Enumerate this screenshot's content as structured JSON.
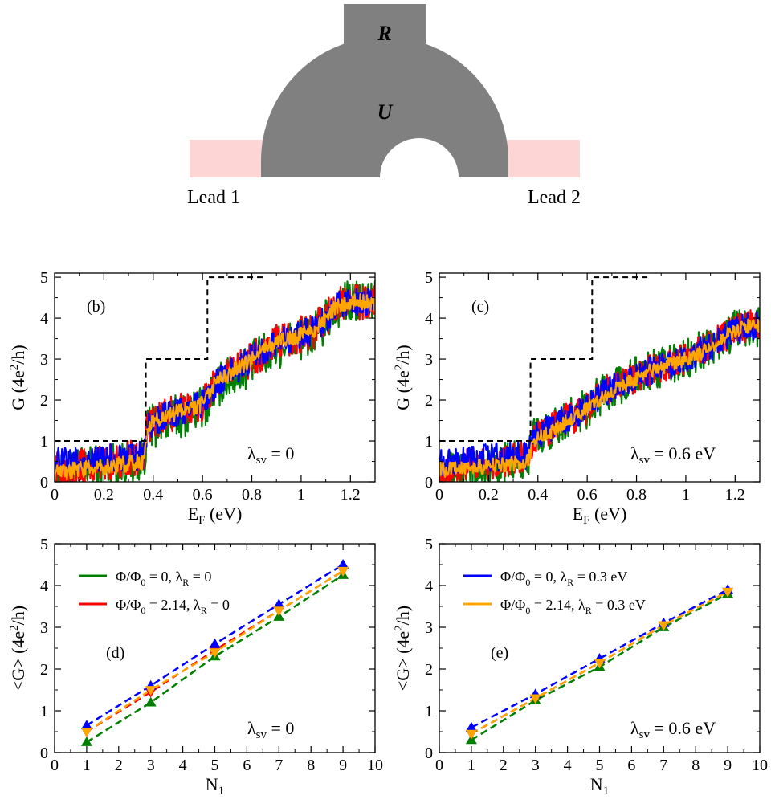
{
  "device": {
    "labels": {
      "top": "R",
      "middle": "U",
      "lead_left": "Lead 1",
      "lead_right": "Lead 2"
    },
    "colors": {
      "body": "#808080",
      "lead": "#fdd5d5",
      "hole": "#ffffff"
    }
  },
  "colors": {
    "green": "#008000",
    "red": "#ff0000",
    "blue": "#0000ff",
    "orange": "#ffa500",
    "black": "#000000"
  },
  "chart_data": [
    {
      "type": "line",
      "panel": "(b)",
      "xlabel": "E",
      "xlabel_sub": "F",
      "xlabel_unit": " (eV)",
      "ylabel": "G (4e",
      "ylabel_sup": "2",
      "ylabel_unit": "/h)",
      "xlim": [
        0,
        1.3
      ],
      "ylim": [
        0,
        5.1
      ],
      "xticks": [
        0,
        0.2,
        0.4,
        0.6,
        0.8,
        1,
        1.2
      ],
      "xticklabels": [
        "0",
        "0.2",
        "0.4",
        "0.6",
        "0.8",
        "1",
        "1.2"
      ],
      "yticks": [
        0,
        1,
        2,
        3,
        4,
        5
      ],
      "yticklabels": [
        "0",
        "1",
        "2",
        "3",
        "4",
        "5"
      ],
      "annotation": {
        "symbol": "λ",
        "sub": "sv",
        "text": " = 0"
      },
      "step_reference": {
        "x": [
          0,
          0.37,
          0.37,
          0.62,
          0.62,
          0.85
        ],
        "y": [
          1,
          1,
          3,
          3,
          5,
          5
        ]
      },
      "series": [
        {
          "color": "green",
          "x": [
            0,
            0.05,
            0.1,
            0.15,
            0.2,
            0.25,
            0.3,
            0.36,
            0.38,
            0.45,
            0.5,
            0.55,
            0.6,
            0.65,
            0.7,
            0.75,
            0.8,
            0.85,
            0.9,
            0.95,
            1.0,
            1.05,
            1.1,
            1.15,
            1.2,
            1.25,
            1.3
          ],
          "y": [
            0.1,
            0.2,
            0.3,
            0.35,
            0.4,
            0.45,
            0.5,
            0.55,
            1.3,
            1.5,
            1.6,
            1.7,
            1.8,
            2.3,
            2.5,
            2.7,
            2.9,
            3.1,
            3.3,
            3.4,
            3.5,
            3.6,
            3.9,
            4.3,
            4.4,
            4.4,
            4.4
          ],
          "noise": 0.55
        },
        {
          "color": "red",
          "x": [
            0,
            0.05,
            0.1,
            0.15,
            0.2,
            0.25,
            0.3,
            0.36,
            0.38,
            0.45,
            0.5,
            0.55,
            0.6,
            0.65,
            0.7,
            0.75,
            0.8,
            0.85,
            0.9,
            0.95,
            1.0,
            1.05,
            1.1,
            1.15,
            1.2,
            1.25,
            1.3
          ],
          "y": [
            0.3,
            0.3,
            0.35,
            0.4,
            0.45,
            0.5,
            0.55,
            0.6,
            1.4,
            1.6,
            1.7,
            1.8,
            1.9,
            2.4,
            2.6,
            2.8,
            3.0,
            3.2,
            3.4,
            3.5,
            3.6,
            3.7,
            4.0,
            4.3,
            4.4,
            4.4,
            4.4
          ],
          "noise": 0.45
        },
        {
          "color": "blue",
          "x": [
            0,
            0.05,
            0.1,
            0.15,
            0.2,
            0.25,
            0.3,
            0.36,
            0.38,
            0.45,
            0.5,
            0.55,
            0.6,
            0.65,
            0.7,
            0.75,
            0.8,
            0.85,
            0.9,
            0.95,
            1.0,
            1.05,
            1.1,
            1.15,
            1.2,
            1.25,
            1.3
          ],
          "y": [
            0.5,
            0.5,
            0.5,
            0.55,
            0.55,
            0.6,
            0.6,
            0.65,
            1.4,
            1.6,
            1.7,
            1.8,
            1.9,
            2.4,
            2.6,
            2.8,
            3.0,
            3.2,
            3.4,
            3.5,
            3.6,
            3.7,
            4.0,
            4.3,
            4.4,
            4.4,
            4.4
          ],
          "noise": 0.35
        },
        {
          "color": "orange",
          "x": [
            0,
            0.05,
            0.1,
            0.15,
            0.2,
            0.25,
            0.3,
            0.36,
            0.38,
            0.45,
            0.5,
            0.55,
            0.6,
            0.65,
            0.7,
            0.75,
            0.8,
            0.85,
            0.9,
            0.95,
            1.0,
            1.05,
            1.1,
            1.15,
            1.2,
            1.25,
            1.3
          ],
          "y": [
            0.2,
            0.25,
            0.3,
            0.35,
            0.35,
            0.4,
            0.45,
            0.5,
            1.4,
            1.6,
            1.7,
            1.8,
            1.9,
            2.4,
            2.6,
            2.8,
            3.0,
            3.2,
            3.4,
            3.5,
            3.6,
            3.7,
            4.0,
            4.3,
            4.4,
            4.4,
            4.3
          ],
          "noise": 0.2
        }
      ]
    },
    {
      "type": "line",
      "panel": "(c)",
      "xlabel": "E",
      "xlabel_sub": "F",
      "xlabel_unit": " (eV)",
      "ylabel": "G (4e",
      "ylabel_sup": "2",
      "ylabel_unit": "/h)",
      "xlim": [
        0,
        1.3
      ],
      "ylim": [
        0,
        5.1
      ],
      "xticks": [
        0,
        0.2,
        0.4,
        0.6,
        0.8,
        1,
        1.2
      ],
      "xticklabels": [
        "0",
        "0.2",
        "0.4",
        "0.6",
        "0.8",
        "1",
        "1.2"
      ],
      "yticks": [
        0,
        1,
        2,
        3,
        4,
        5
      ],
      "yticklabels": [
        "0",
        "1",
        "2",
        "3",
        "4",
        "5"
      ],
      "annotation": {
        "symbol": "λ",
        "sub": "sv",
        "text": " = 0.6 eV"
      },
      "step_reference": {
        "x": [
          0,
          0.37,
          0.37,
          0.62,
          0.62,
          0.85
        ],
        "y": [
          1,
          1,
          3,
          3,
          5,
          5
        ]
      },
      "series": [
        {
          "color": "green",
          "x": [
            0,
            0.05,
            0.1,
            0.15,
            0.2,
            0.25,
            0.3,
            0.36,
            0.38,
            0.45,
            0.5,
            0.55,
            0.6,
            0.65,
            0.7,
            0.75,
            0.8,
            0.85,
            0.9,
            0.95,
            1.0,
            1.05,
            1.1,
            1.15,
            1.2,
            1.25,
            1.3
          ],
          "y": [
            0.2,
            0.25,
            0.3,
            0.35,
            0.4,
            0.45,
            0.5,
            0.55,
            1.1,
            1.3,
            1.5,
            1.6,
            1.8,
            2.1,
            2.3,
            2.4,
            2.6,
            2.7,
            2.8,
            2.9,
            3.0,
            3.2,
            3.3,
            3.5,
            3.7,
            3.8,
            3.8
          ],
          "noise": 0.5
        },
        {
          "color": "red",
          "x": [
            0,
            0.05,
            0.1,
            0.15,
            0.2,
            0.25,
            0.3,
            0.36,
            0.38,
            0.45,
            0.5,
            0.55,
            0.6,
            0.65,
            0.7,
            0.75,
            0.8,
            0.85,
            0.9,
            0.95,
            1.0,
            1.05,
            1.1,
            1.15,
            1.2,
            1.25,
            1.3
          ],
          "y": [
            0.3,
            0.35,
            0.4,
            0.4,
            0.45,
            0.5,
            0.55,
            0.6,
            1.1,
            1.3,
            1.5,
            1.6,
            1.8,
            2.1,
            2.3,
            2.4,
            2.6,
            2.7,
            2.8,
            2.9,
            3.0,
            3.2,
            3.3,
            3.5,
            3.7,
            3.8,
            3.8
          ],
          "noise": 0.4
        },
        {
          "color": "blue",
          "x": [
            0,
            0.05,
            0.1,
            0.15,
            0.2,
            0.25,
            0.3,
            0.36,
            0.38,
            0.45,
            0.5,
            0.55,
            0.6,
            0.65,
            0.7,
            0.75,
            0.8,
            0.85,
            0.9,
            0.95,
            1.0,
            1.05,
            1.1,
            1.15,
            1.2,
            1.25,
            1.3
          ],
          "y": [
            0.5,
            0.5,
            0.55,
            0.55,
            0.6,
            0.6,
            0.65,
            0.65,
            1.1,
            1.3,
            1.5,
            1.6,
            1.8,
            2.1,
            2.3,
            2.4,
            2.6,
            2.7,
            2.8,
            2.9,
            3.0,
            3.2,
            3.3,
            3.5,
            3.7,
            3.8,
            3.8
          ],
          "noise": 0.35
        },
        {
          "color": "orange",
          "x": [
            0,
            0.05,
            0.1,
            0.15,
            0.2,
            0.25,
            0.3,
            0.36,
            0.38,
            0.45,
            0.5,
            0.55,
            0.6,
            0.65,
            0.7,
            0.75,
            0.8,
            0.85,
            0.9,
            0.95,
            1.0,
            1.05,
            1.1,
            1.15,
            1.2,
            1.25,
            1.3
          ],
          "y": [
            0.3,
            0.3,
            0.35,
            0.35,
            0.4,
            0.4,
            0.45,
            0.5,
            1.0,
            1.2,
            1.4,
            1.6,
            1.8,
            2.0,
            2.2,
            2.4,
            2.5,
            2.7,
            2.8,
            2.9,
            3.0,
            3.1,
            3.3,
            3.5,
            3.7,
            3.8,
            3.8
          ],
          "noise": 0.18
        }
      ]
    },
    {
      "type": "line",
      "panel": "(d)",
      "xlabel": "N",
      "xlabel_sub": "1",
      "xlabel_unit": "",
      "ylabel": "<G> (4e",
      "ylabel_sup": "2",
      "ylabel_unit": "/h)",
      "xlim": [
        0,
        10
      ],
      "ylim": [
        0,
        5
      ],
      "xticks": [
        0,
        1,
        2,
        3,
        4,
        5,
        6,
        7,
        8,
        9,
        10
      ],
      "xticklabels": [
        "0",
        "1",
        "2",
        "3",
        "4",
        "5",
        "6",
        "7",
        "8",
        "9",
        "10"
      ],
      "yticks": [
        0,
        1,
        2,
        3,
        4,
        5
      ],
      "yticklabels": [
        "0",
        "1",
        "2",
        "3",
        "4",
        "5"
      ],
      "annotation": {
        "symbol": "λ",
        "sub": "sv",
        "text": " = 0"
      },
      "legend": [
        {
          "color": "green",
          "main": "Φ/Φ",
          "sub0": "0",
          "mid": " = 0, λ",
          "sub1": "R",
          "tail": " = 0"
        },
        {
          "color": "red",
          "main": "Φ/Φ",
          "sub0": "0",
          "mid": " = 2.14, λ",
          "sub1": "R",
          "tail": " = 0"
        }
      ],
      "series": [
        {
          "color": "green",
          "marker": "up",
          "x": [
            1,
            3,
            5,
            7,
            9
          ],
          "y": [
            0.25,
            1.2,
            2.3,
            3.25,
            4.25
          ]
        },
        {
          "color": "red",
          "marker": "down",
          "x": [
            1,
            3,
            5,
            7,
            9
          ],
          "y": [
            0.5,
            1.45,
            2.45,
            3.4,
            4.35
          ]
        },
        {
          "color": "blue",
          "marker": "up",
          "x": [
            1,
            3,
            5,
            7,
            9
          ],
          "y": [
            0.65,
            1.6,
            2.6,
            3.55,
            4.5
          ]
        },
        {
          "color": "orange",
          "marker": "down",
          "x": [
            1,
            3,
            5,
            7,
            9
          ],
          "y": [
            0.5,
            1.5,
            2.4,
            3.4,
            4.35
          ]
        }
      ]
    },
    {
      "type": "line",
      "panel": "(e)",
      "xlabel": "N",
      "xlabel_sub": "1",
      "xlabel_unit": "",
      "ylabel": "<G> (4e",
      "ylabel_sup": "2",
      "ylabel_unit": "/h)",
      "xlim": [
        0,
        10
      ],
      "ylim": [
        0,
        5
      ],
      "xticks": [
        0,
        1,
        2,
        3,
        4,
        5,
        6,
        7,
        8,
        9,
        10
      ],
      "xticklabels": [
        "0",
        "1",
        "2",
        "3",
        "4",
        "5",
        "6",
        "7",
        "8",
        "9",
        "10"
      ],
      "yticks": [
        0,
        1,
        2,
        3,
        4,
        5
      ],
      "yticklabels": [
        "0",
        "1",
        "2",
        "3",
        "4",
        "5"
      ],
      "annotation": {
        "symbol": "λ",
        "sub": "sv",
        "text": " = 0.6 eV"
      },
      "legend": [
        {
          "color": "blue",
          "main": "Φ/Φ",
          "sub0": "0",
          "mid": " = 0, λ",
          "sub1": "R",
          "tail": " = 0.3 eV"
        },
        {
          "color": "orange",
          "main": "Φ/Φ",
          "sub0": "0",
          "mid": " = 2.14, λ",
          "sub1": "R",
          "tail": " = 0.3 eV"
        }
      ],
      "series": [
        {
          "color": "green",
          "marker": "up",
          "x": [
            1,
            3,
            5,
            7,
            9
          ],
          "y": [
            0.3,
            1.25,
            2.05,
            3.0,
            3.8
          ]
        },
        {
          "color": "red",
          "marker": "down",
          "x": [
            1,
            3,
            5,
            7,
            9
          ],
          "y": [
            0.45,
            1.3,
            2.15,
            3.05,
            3.85
          ]
        },
        {
          "color": "blue",
          "marker": "up",
          "x": [
            1,
            3,
            5,
            7,
            9
          ],
          "y": [
            0.6,
            1.4,
            2.25,
            3.1,
            3.9
          ]
        },
        {
          "color": "orange",
          "marker": "down",
          "x": [
            1,
            3,
            5,
            7,
            9
          ],
          "y": [
            0.45,
            1.3,
            2.15,
            3.05,
            3.85
          ]
        }
      ]
    }
  ]
}
